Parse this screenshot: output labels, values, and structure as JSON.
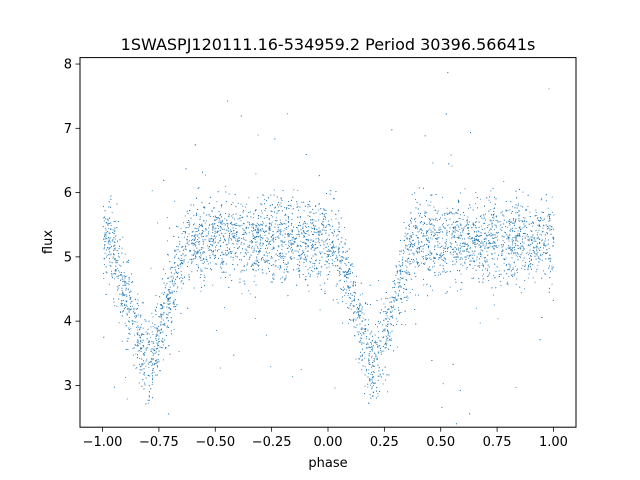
{
  "chart_data": {
    "type": "scatter",
    "title": "1SWASPJ120111.16-534959.2 Period 30396.56641s",
    "xlabel": "phase",
    "ylabel": "flux",
    "xlim": [
      -1.1,
      1.1
    ],
    "ylim": [
      2.35,
      8.1
    ],
    "xticks": [
      -1.0,
      -0.75,
      -0.5,
      -0.25,
      0.0,
      0.25,
      0.5,
      0.75,
      1.0
    ],
    "xtick_labels": [
      "−1.00",
      "−0.75",
      "−0.50",
      "−0.25",
      "0.00",
      "0.25",
      "0.50",
      "0.75",
      "1.00"
    ],
    "yticks": [
      3,
      4,
      5,
      6,
      7,
      8
    ],
    "ytick_labels": [
      "3",
      "4",
      "5",
      "6",
      "7",
      "8"
    ],
    "grid": false,
    "legend": "none",
    "marker_color": "#1f77b4",
    "series": [
      {
        "x_range": [
          -1.0,
          1.0
        ],
        "baseline_flux": 5.25,
        "scatter_sigma": 0.32,
        "eclipse_depth": 2.0,
        "eclipse_centers": [
          -0.8,
          0.2
        ],
        "eclipse_half_width": 0.17
      }
    ]
  }
}
